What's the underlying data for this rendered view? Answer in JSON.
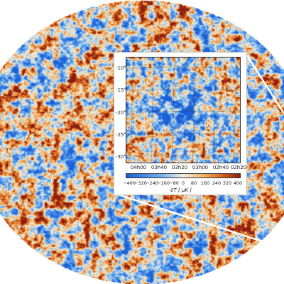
{
  "image": {
    "subject": "all-sky-cmb-temperature-map",
    "projection": "mollweide"
  },
  "inset": {
    "y_ticks": [
      "-10°",
      "-15°",
      "-20°",
      "-25°",
      "-30°"
    ],
    "x_ticks": [
      "04h00",
      "03h40",
      "03h20",
      "03h00",
      "02h40",
      "02h20"
    ],
    "colorbar": {
      "ticks": [
        "−400",
        "−320",
        "−240",
        "−160",
        "−80",
        "0",
        "80",
        "160",
        "240",
        "320",
        "400"
      ],
      "label": "δT [ μK ]",
      "range": [
        -400,
        400
      ]
    }
  },
  "colors": {
    "cold": "#1a5fd6",
    "neutral": "#f2f0e0",
    "warm": "#d6601a",
    "hot": "#8b1d12"
  }
}
